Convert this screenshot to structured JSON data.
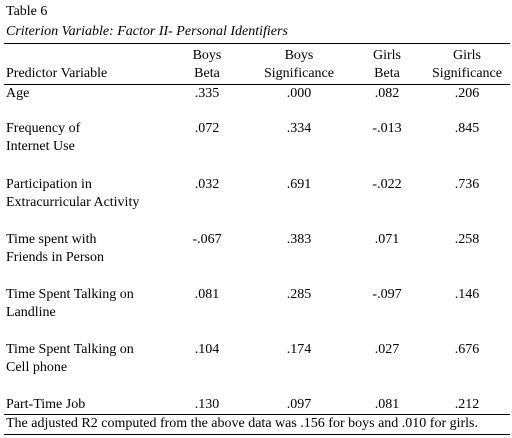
{
  "header": {
    "title": "Table 6",
    "subtitle": "Criterion Variable: Factor II- Personal Identifiers"
  },
  "table": {
    "columns": [
      [
        "Predictor Variable"
      ],
      [
        "Boys",
        "Beta"
      ],
      [
        "Boys",
        "Significance"
      ],
      [
        "Girls",
        "Beta"
      ],
      [
        "Girls",
        "Significance"
      ]
    ],
    "rows": [
      [
        [
          "Age"
        ],
        ".335",
        ".000",
        ".082",
        ".206"
      ],
      [
        [
          "Frequency of",
          "Internet Use"
        ],
        ".072",
        ".334",
        "-.013",
        ".845"
      ],
      [
        [
          "Participation in",
          "Extracurricular Activity"
        ],
        ".032",
        ".691",
        "-.022",
        ".736"
      ],
      [
        [
          "Time spent with",
          "Friends in Person"
        ],
        "-.067",
        ".383",
        ".071",
        ".258"
      ],
      [
        [
          "Time Spent Talking on",
          "Landline"
        ],
        ".081",
        ".285",
        "-.097",
        ".146"
      ],
      [
        [
          "Time Spent Talking on",
          "Cell phone"
        ],
        ".104",
        ".174",
        ".027",
        ".676"
      ],
      [
        [
          "Part-Time Job"
        ],
        ".130",
        ".097",
        ".081",
        ".212"
      ]
    ]
  },
  "footer": {
    "note": "The adjusted R2 computed from the above data was .156 for boys and .010 for girls."
  }
}
